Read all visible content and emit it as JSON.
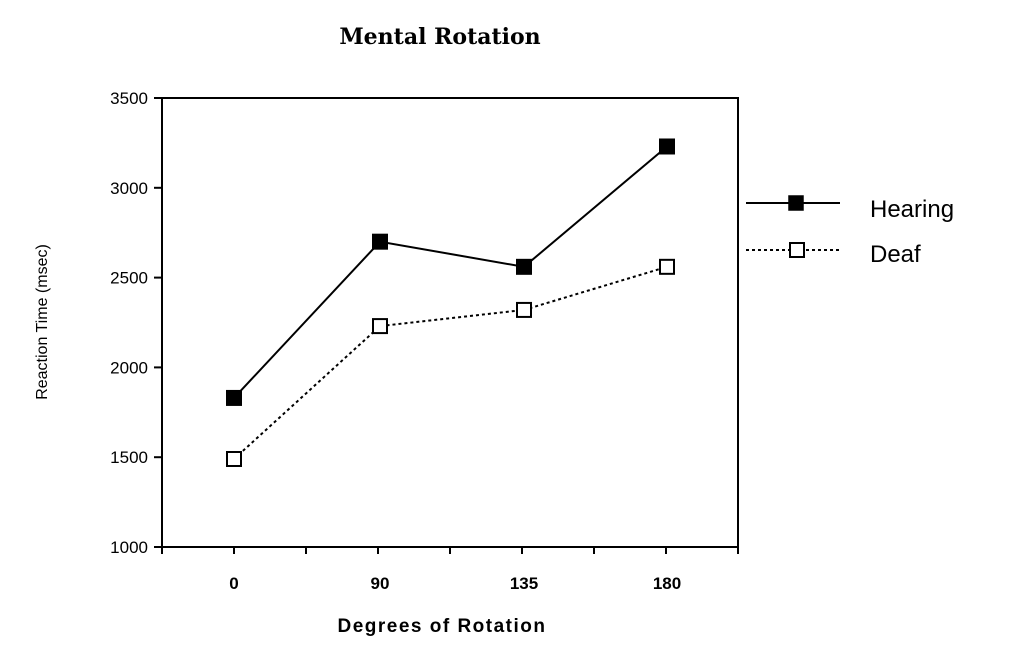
{
  "chart_data": {
    "type": "line",
    "title": "Mental Rotation",
    "xlabel": "Degrees of Rotation",
    "ylabel": "Reaction Time (msec)",
    "categories": [
      "0",
      "90",
      "135",
      "180"
    ],
    "yticks": [
      "1000",
      "1500",
      "2000",
      "2500",
      "3000",
      "3500"
    ],
    "ylim": [
      1000,
      3500
    ],
    "series": [
      {
        "name": "Hearing",
        "values": [
          1830,
          2700,
          2560,
          3230
        ],
        "line_style": "solid",
        "marker": "filled-square"
      },
      {
        "name": "Deaf",
        "values": [
          1490,
          2230,
          2320,
          2560
        ],
        "line_style": "dotted",
        "marker": "open-square"
      }
    ],
    "legend_position": "right",
    "grid": false
  }
}
